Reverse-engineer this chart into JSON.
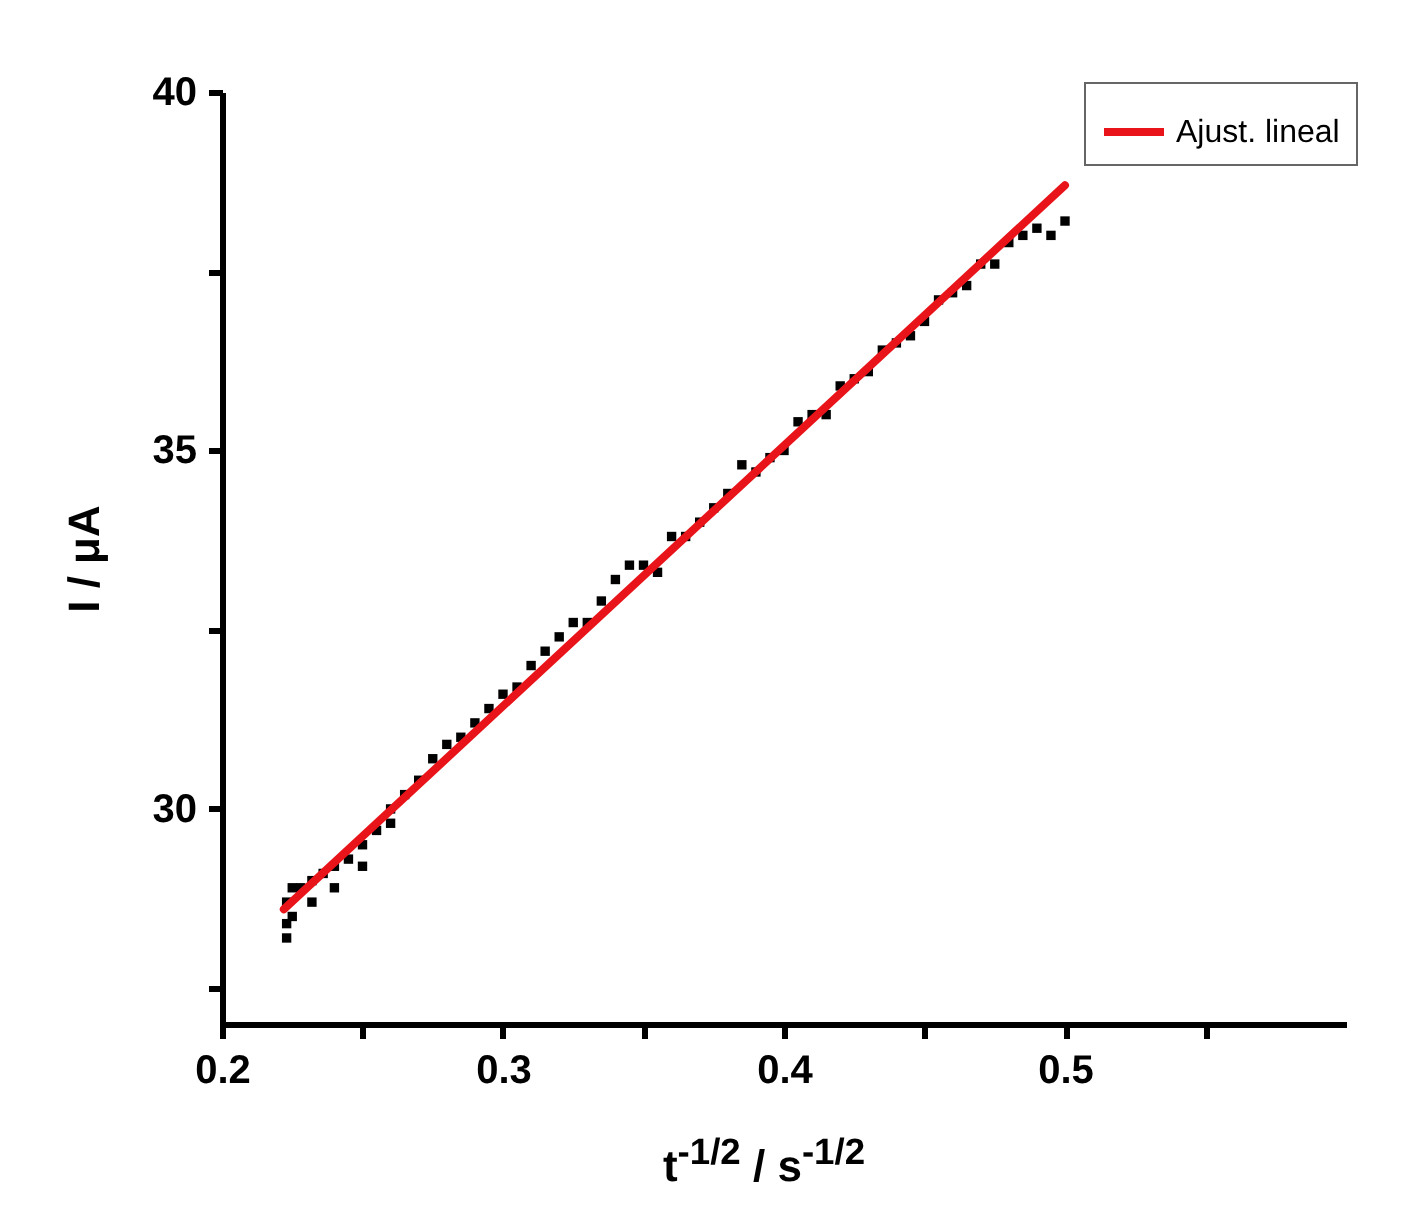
{
  "chart_data": {
    "type": "scatter",
    "xlabel": "t$^{-1/2}$ / s$^{-1/2}$",
    "ylabel": "I / μA",
    "xlim": [
      0.2,
      0.6
    ],
    "ylim": [
      27,
      40
    ],
    "xticks": [
      0.2,
      {
        "value": 0.25,
        "label": null
      },
      0.3,
      {
        "value": 0.35,
        "label": null
      },
      0.4,
      {
        "value": 0.45,
        "label": null
      },
      0.5,
      {
        "value": 0.55,
        "label": null
      }
    ],
    "yticks": [
      {
        "value": 27.5,
        "label": null
      },
      30,
      {
        "value": 32.5,
        "label": null
      },
      35,
      {
        "value": 37.5,
        "label": null
      },
      40
    ],
    "legend": "top right",
    "grid": false,
    "series": [
      {
        "marker": "square",
        "color": "#000000",
        "x": [
          0.223,
          0.223,
          0.223,
          0.225,
          0.225,
          0.228,
          0.232,
          0.232,
          0.236,
          0.24,
          0.24,
          0.245,
          0.25,
          0.25,
          0.255,
          0.26,
          0.26,
          0.265,
          0.27,
          0.275,
          0.28,
          0.285,
          0.29,
          0.295,
          0.3,
          0.305,
          0.31,
          0.315,
          0.32,
          0.325,
          0.33,
          0.335,
          0.34,
          0.345,
          0.35,
          0.355,
          0.36,
          0.365,
          0.37,
          0.375,
          0.38,
          0.385,
          0.39,
          0.395,
          0.4,
          0.405,
          0.41,
          0.415,
          0.42,
          0.425,
          0.43,
          0.435,
          0.44,
          0.445,
          0.45,
          0.455,
          0.46,
          0.465,
          0.47,
          0.475,
          0.48,
          0.485,
          0.49,
          0.495,
          0.5
        ],
        "values": [
          28.2,
          28.4,
          28.7,
          28.5,
          28.9,
          28.9,
          29.0,
          28.7,
          29.1,
          29.2,
          28.9,
          29.3,
          29.5,
          29.2,
          29.7,
          30.0,
          29.8,
          30.2,
          30.4,
          30.7,
          30.9,
          31.0,
          31.2,
          31.4,
          31.6,
          31.7,
          32.0,
          32.2,
          32.4,
          32.6,
          32.6,
          32.9,
          33.2,
          33.4,
          33.4,
          33.3,
          33.8,
          33.8,
          34.0,
          34.2,
          34.4,
          34.8,
          34.7,
          34.9,
          35.0,
          35.4,
          35.5,
          35.5,
          35.9,
          36.0,
          36.1,
          36.4,
          36.5,
          36.6,
          36.8,
          37.1,
          37.2,
          37.3,
          37.6,
          37.6,
          37.9,
          38.0,
          38.1,
          38.0,
          38.2
        ]
      },
      {
        "type": "line",
        "name": "Ajust. lineal",
        "color": "#e8141a",
        "x": [
          0.222,
          0.5
        ],
        "values": [
          28.6,
          38.7
        ]
      }
    ]
  }
}
